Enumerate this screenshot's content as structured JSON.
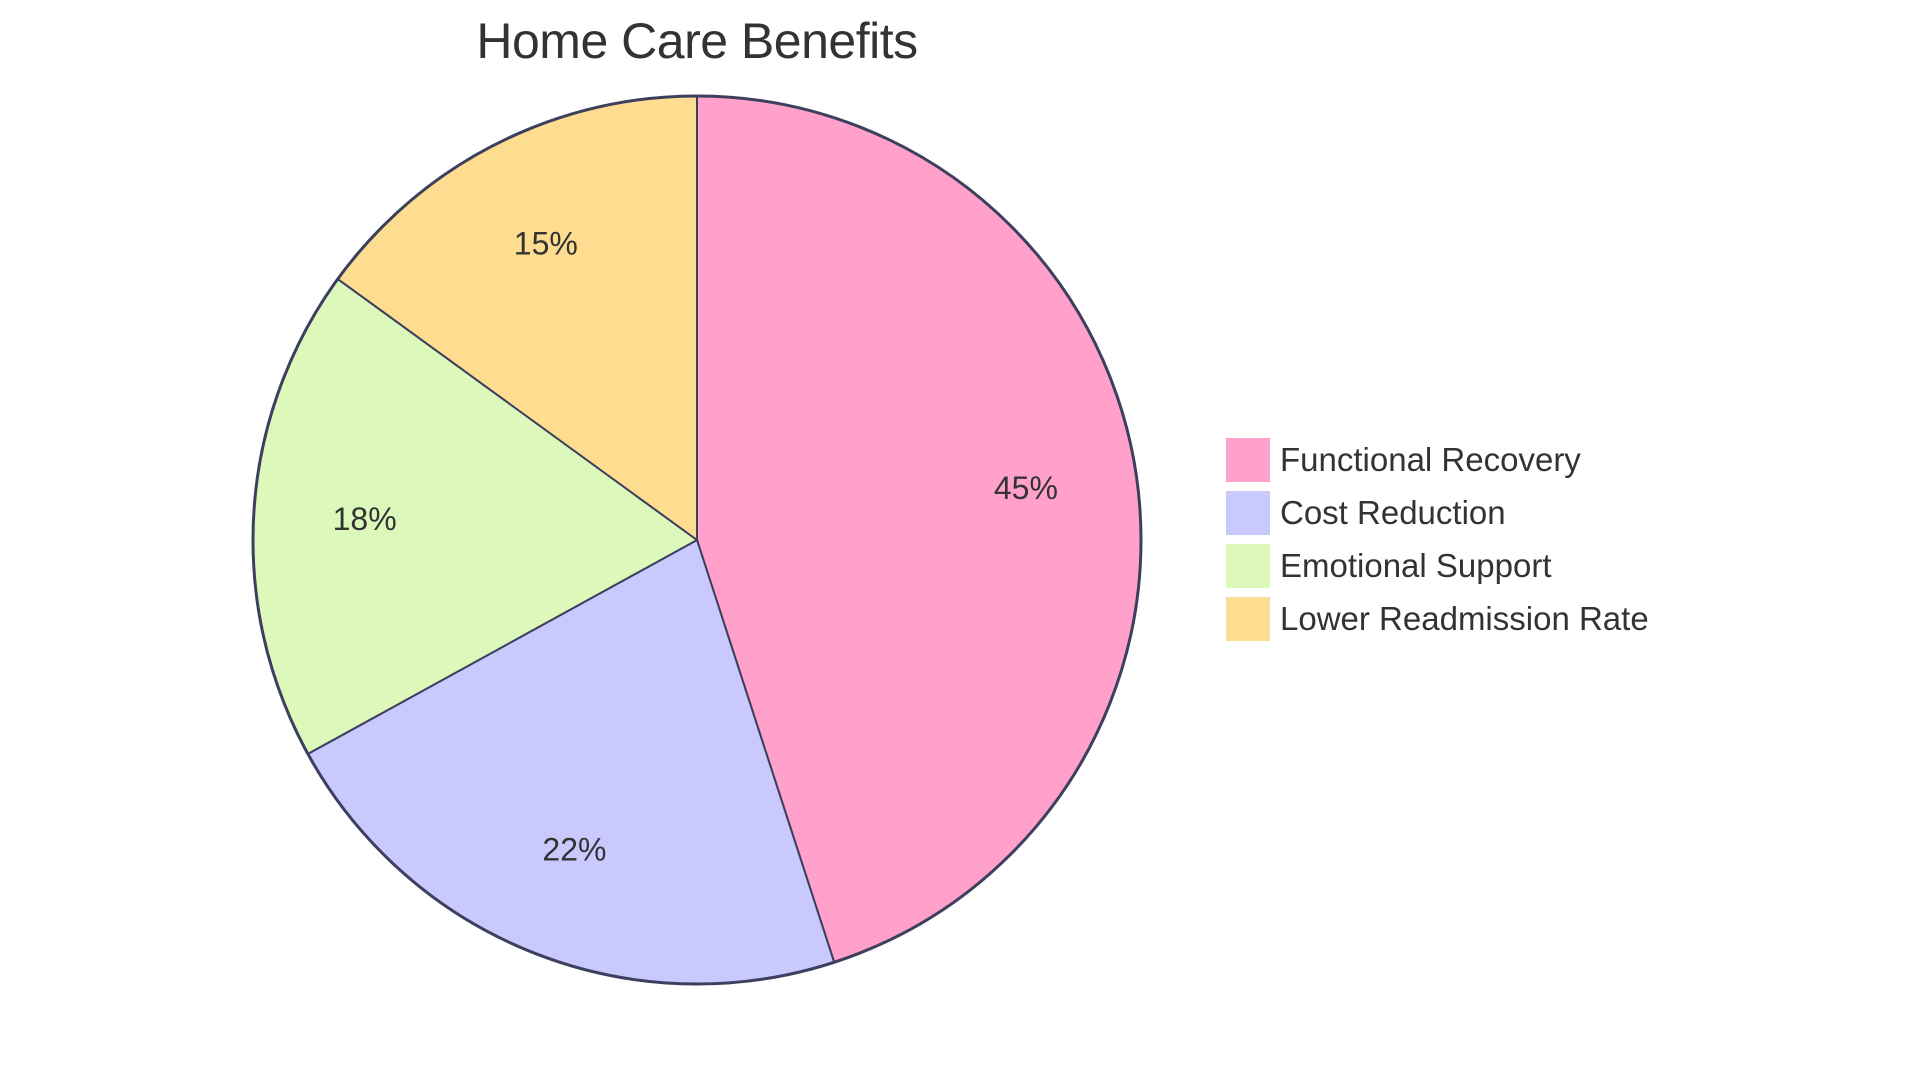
{
  "chart_data": {
    "type": "pie",
    "title": "Home Care Benefits",
    "categories": [
      "Functional Recovery",
      "Cost Reduction",
      "Emotional Support",
      "Lower Readmission Rate"
    ],
    "values": [
      45,
      22,
      18,
      15
    ],
    "labels": [
      "45%",
      "22%",
      "18%",
      "15%"
    ],
    "colors": [
      "#ffa1ca",
      "#c9c9fd",
      "#dcf9bb",
      "#fedd91"
    ],
    "stroke_color": "#3d3f5e",
    "start_angle": "12 o'clock, clockwise",
    "legend_position": "right"
  },
  "title": "Home Care Benefits",
  "legend": {
    "items": [
      {
        "label": "Functional Recovery",
        "color": "#ffa1ca"
      },
      {
        "label": "Cost Reduction",
        "color": "#c9c9fd"
      },
      {
        "label": "Emotional Support",
        "color": "#dcf9bb"
      },
      {
        "label": "Lower Readmission Rate",
        "color": "#fedd91"
      }
    ]
  },
  "slices": [
    {
      "label": "45%"
    },
    {
      "label": "22%"
    },
    {
      "label": "18%"
    },
    {
      "label": "15%"
    }
  ]
}
